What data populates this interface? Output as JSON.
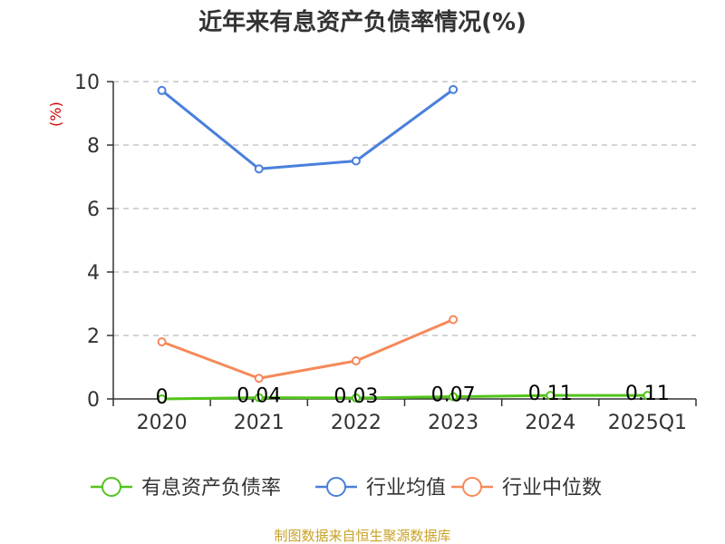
{
  "chart_data": {
    "type": "line",
    "title": "近年来有息资产负债率情况(%)",
    "ylabel": "(%)",
    "categories": [
      "2020",
      "2021",
      "2022",
      "2023",
      "2024",
      "2025Q1"
    ],
    "ylim": [
      0,
      10
    ],
    "yticks": [
      0,
      2,
      4,
      6,
      8,
      10
    ],
    "grid": true,
    "legend_position": "bottom",
    "series": [
      {
        "name": "有息资产负债率",
        "color": "#52c41a",
        "values": [
          0,
          0.04,
          0.03,
          0.07,
          0.11,
          0.11
        ],
        "labels": [
          "0",
          "0.04",
          "0.03",
          "0.07",
          "0.11",
          "0.11"
        ]
      },
      {
        "name": "行业均值",
        "color": "#4a7fdc",
        "values": [
          9.72,
          7.25,
          7.5,
          9.75,
          null,
          null
        ]
      },
      {
        "name": "行业中位数",
        "color": "#f5895a",
        "values": [
          1.8,
          0.65,
          1.2,
          2.5,
          null,
          null
        ]
      }
    ],
    "source": "制图数据来自恒生聚源数据库"
  }
}
